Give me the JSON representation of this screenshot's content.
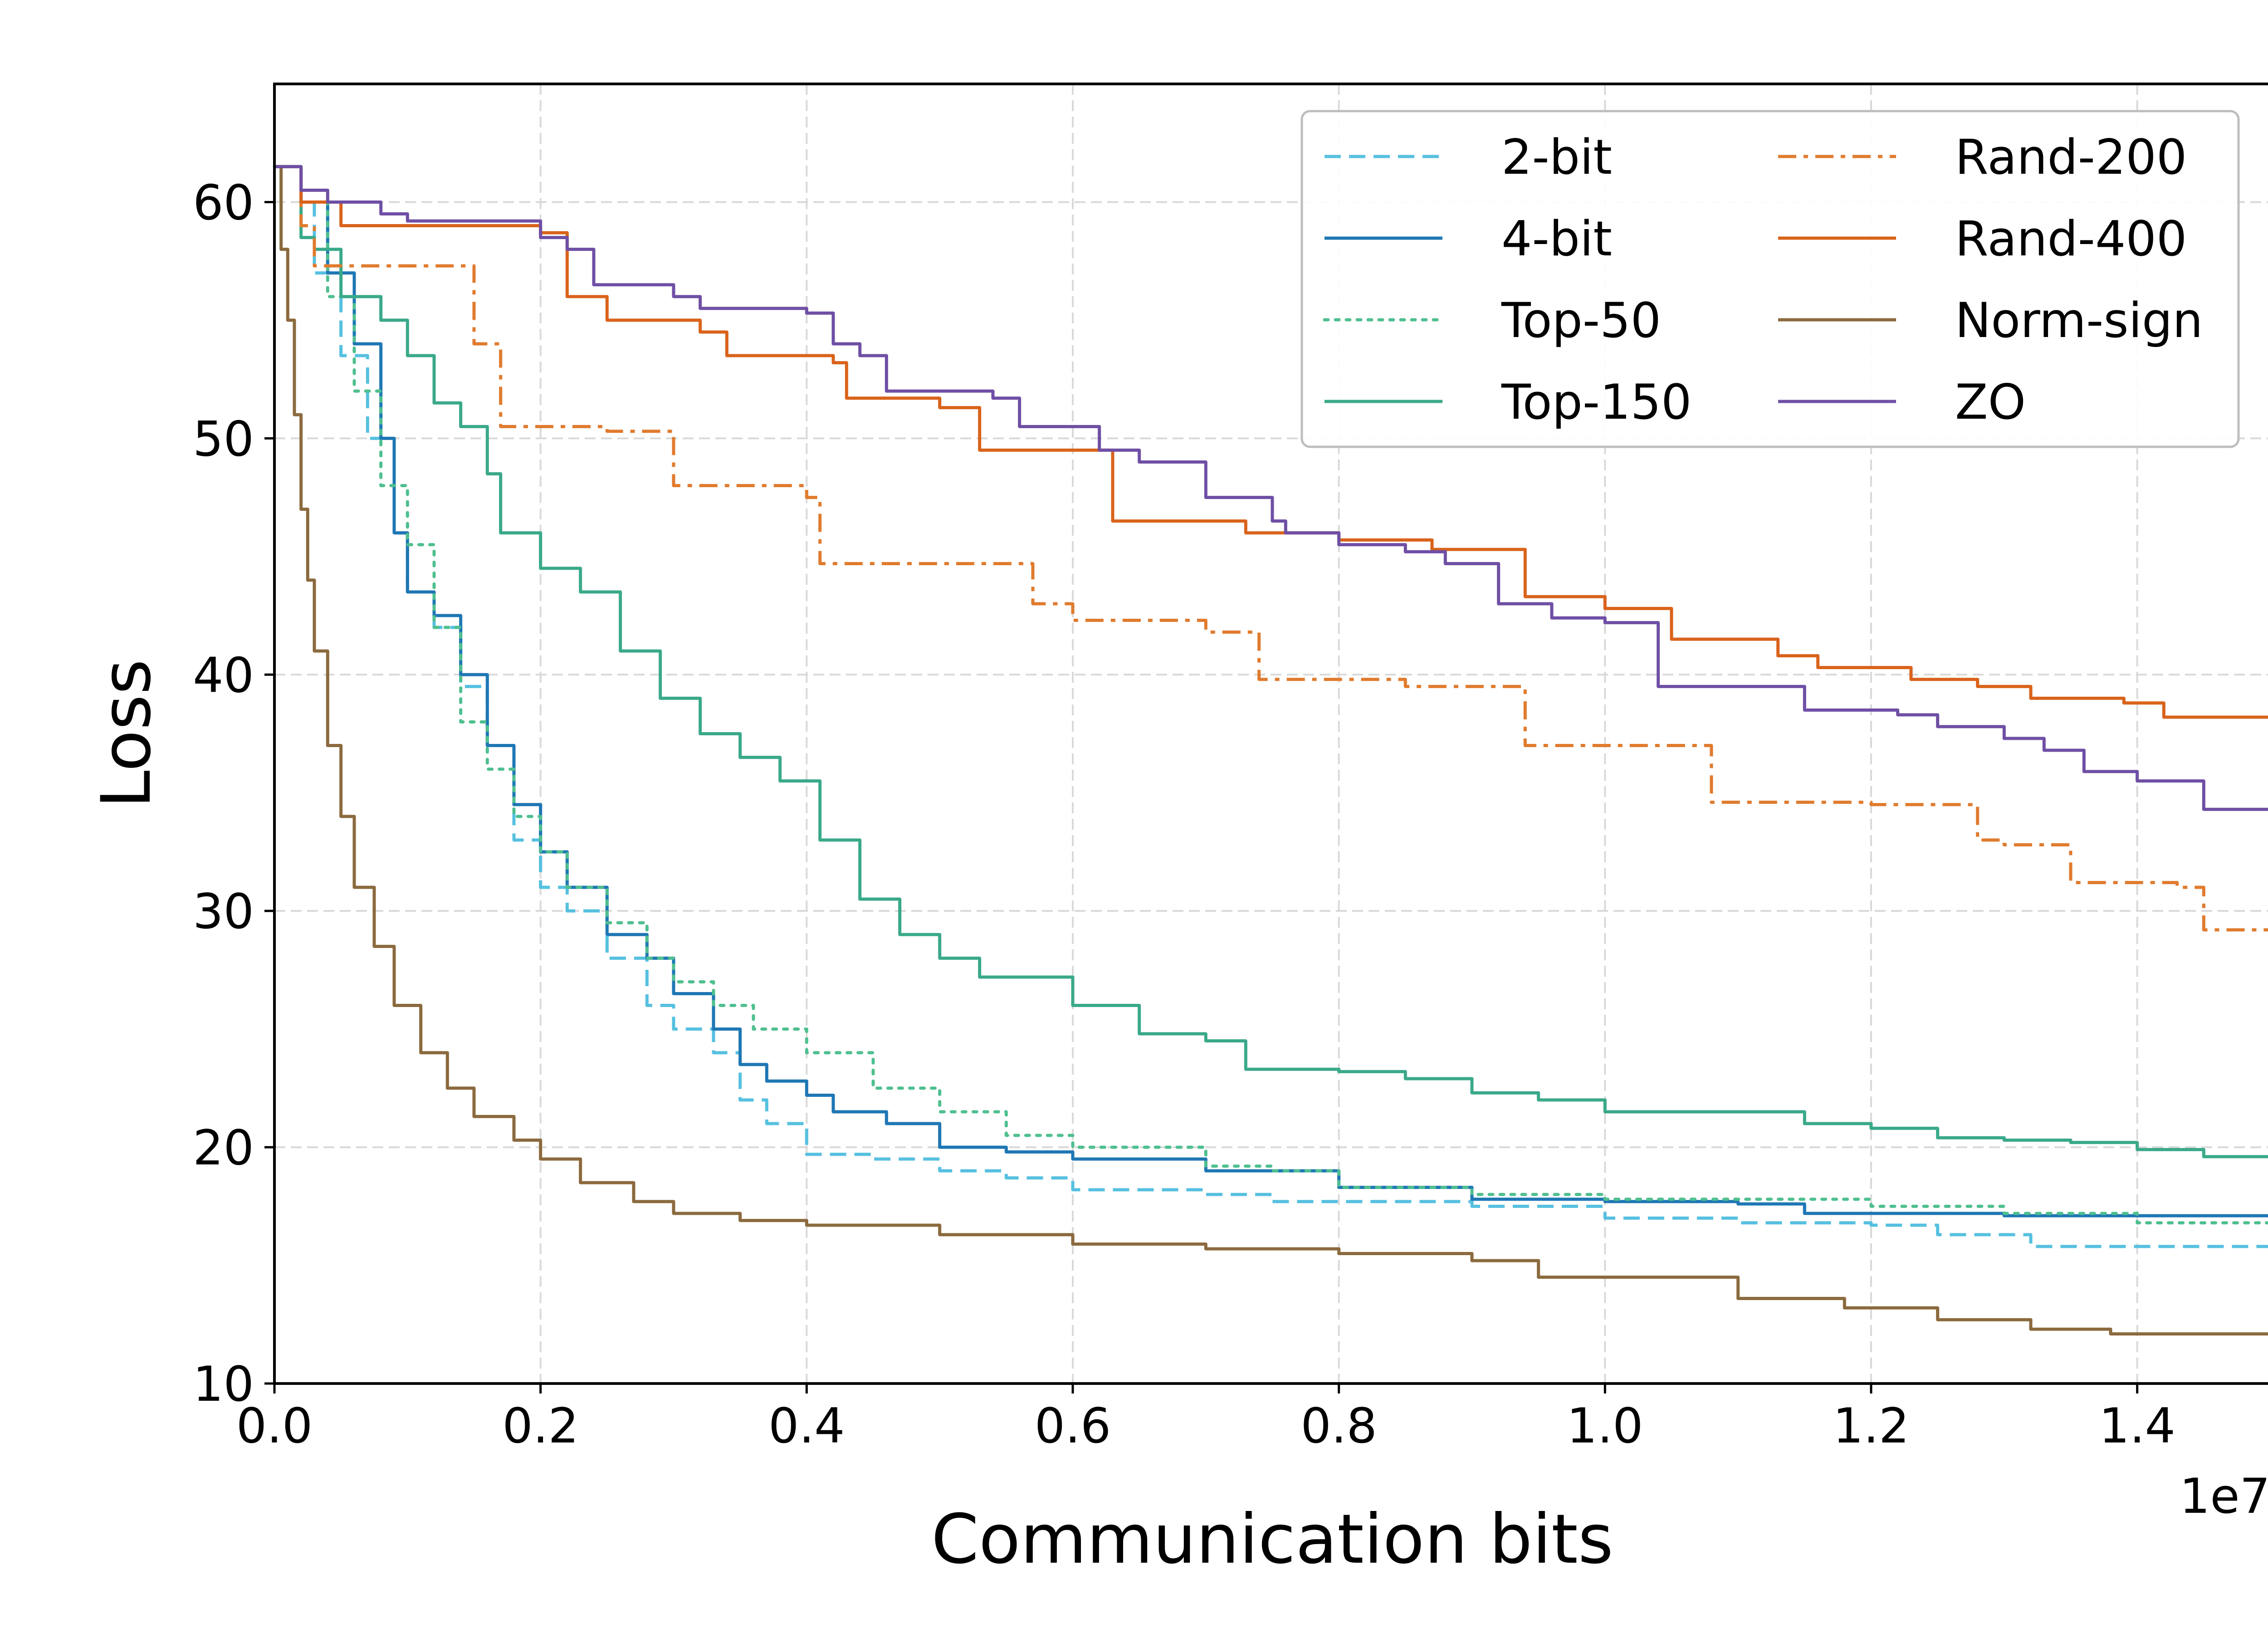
{
  "chart_data": {
    "type": "line",
    "xlabel": "Communication bits",
    "ylabel": "Loss",
    "x_offset_label": "1e7",
    "xlim": [
      0,
      1.5
    ],
    "ylim": [
      10,
      65
    ],
    "xticks": [
      0.0,
      0.2,
      0.4,
      0.6,
      0.8,
      1.0,
      1.2,
      1.4
    ],
    "xtick_labels": [
      "0.0",
      "0.2",
      "0.4",
      "0.6",
      "0.8",
      "1.0",
      "1.2",
      "1.4"
    ],
    "yticks": [
      10,
      20,
      30,
      40,
      50,
      60
    ],
    "ytick_labels": [
      "10",
      "20",
      "30",
      "40",
      "50",
      "60"
    ],
    "grid": true,
    "legend_position": "top-right",
    "series": [
      {
        "name": "2-bit",
        "color": "#56c0e0",
        "dash": "dashed",
        "points": [
          [
            0,
            61.5
          ],
          [
            0.02,
            60
          ],
          [
            0.03,
            57
          ],
          [
            0.05,
            53.5
          ],
          [
            0.07,
            50
          ],
          [
            0.09,
            46
          ],
          [
            0.1,
            43.5
          ],
          [
            0.12,
            42
          ],
          [
            0.14,
            39.5
          ],
          [
            0.16,
            37
          ],
          [
            0.18,
            33
          ],
          [
            0.2,
            31
          ],
          [
            0.22,
            30
          ],
          [
            0.25,
            28
          ],
          [
            0.28,
            26
          ],
          [
            0.3,
            25
          ],
          [
            0.33,
            24
          ],
          [
            0.35,
            22
          ],
          [
            0.37,
            21
          ],
          [
            0.4,
            19.7
          ],
          [
            0.45,
            19.5
          ],
          [
            0.5,
            19
          ],
          [
            0.55,
            18.7
          ],
          [
            0.6,
            18.2
          ],
          [
            0.7,
            18
          ],
          [
            0.75,
            17.7
          ],
          [
            0.9,
            17.5
          ],
          [
            1.0,
            17
          ],
          [
            1.1,
            16.8
          ],
          [
            1.2,
            16.7
          ],
          [
            1.25,
            16.3
          ],
          [
            1.32,
            15.8
          ],
          [
            1.5,
            15.8
          ]
        ]
      },
      {
        "name": "4-bit",
        "color": "#1f77b4",
        "dash": "solid",
        "points": [
          [
            0,
            61.5
          ],
          [
            0.02,
            60
          ],
          [
            0.04,
            57
          ],
          [
            0.06,
            54
          ],
          [
            0.08,
            50
          ],
          [
            0.09,
            46
          ],
          [
            0.1,
            43.5
          ],
          [
            0.12,
            42.5
          ],
          [
            0.14,
            40
          ],
          [
            0.16,
            37
          ],
          [
            0.18,
            34.5
          ],
          [
            0.2,
            32.5
          ],
          [
            0.22,
            31
          ],
          [
            0.25,
            29
          ],
          [
            0.28,
            28
          ],
          [
            0.3,
            26.5
          ],
          [
            0.33,
            25
          ],
          [
            0.35,
            23.5
          ],
          [
            0.37,
            22.8
          ],
          [
            0.4,
            22.2
          ],
          [
            0.42,
            21.5
          ],
          [
            0.46,
            21
          ],
          [
            0.5,
            20
          ],
          [
            0.55,
            19.8
          ],
          [
            0.6,
            19.5
          ],
          [
            0.7,
            19
          ],
          [
            0.8,
            18.3
          ],
          [
            0.9,
            17.8
          ],
          [
            1.0,
            17.7
          ],
          [
            1.1,
            17.6
          ],
          [
            1.15,
            17.2
          ],
          [
            1.3,
            17.1
          ],
          [
            1.5,
            17.1
          ]
        ]
      },
      {
        "name": "Top-50",
        "color": "#4fbf8f",
        "dash": "dotted",
        "points": [
          [
            0,
            61.5
          ],
          [
            0.02,
            60
          ],
          [
            0.04,
            56
          ],
          [
            0.06,
            52
          ],
          [
            0.08,
            48
          ],
          [
            0.1,
            45.5
          ],
          [
            0.12,
            42
          ],
          [
            0.14,
            38
          ],
          [
            0.16,
            36
          ],
          [
            0.18,
            34
          ],
          [
            0.2,
            32.5
          ],
          [
            0.22,
            31
          ],
          [
            0.25,
            29.5
          ],
          [
            0.28,
            28
          ],
          [
            0.3,
            27
          ],
          [
            0.33,
            26
          ],
          [
            0.36,
            25
          ],
          [
            0.4,
            24
          ],
          [
            0.45,
            22.5
          ],
          [
            0.5,
            21.5
          ],
          [
            0.55,
            20.5
          ],
          [
            0.6,
            20
          ],
          [
            0.7,
            19.2
          ],
          [
            0.75,
            19
          ],
          [
            0.8,
            18.3
          ],
          [
            0.9,
            18
          ],
          [
            1.0,
            17.8
          ],
          [
            1.1,
            17.8
          ],
          [
            1.2,
            17.5
          ],
          [
            1.3,
            17.2
          ],
          [
            1.4,
            16.8
          ],
          [
            1.5,
            16.8
          ]
        ]
      },
      {
        "name": "Top-150",
        "color": "#3aa98a",
        "dash": "solid",
        "points": [
          [
            0,
            61.5
          ],
          [
            0.02,
            58.5
          ],
          [
            0.03,
            58
          ],
          [
            0.05,
            56
          ],
          [
            0.08,
            55
          ],
          [
            0.1,
            53.5
          ],
          [
            0.12,
            51.5
          ],
          [
            0.14,
            50.5
          ],
          [
            0.16,
            48.5
          ],
          [
            0.17,
            46
          ],
          [
            0.2,
            44.5
          ],
          [
            0.23,
            43.5
          ],
          [
            0.26,
            41
          ],
          [
            0.29,
            39
          ],
          [
            0.32,
            37.5
          ],
          [
            0.35,
            36.5
          ],
          [
            0.38,
            35.5
          ],
          [
            0.41,
            33
          ],
          [
            0.44,
            30.5
          ],
          [
            0.47,
            29
          ],
          [
            0.5,
            28
          ],
          [
            0.53,
            27.2
          ],
          [
            0.6,
            26
          ],
          [
            0.65,
            24.8
          ],
          [
            0.7,
            24.5
          ],
          [
            0.73,
            23.3
          ],
          [
            0.8,
            23.2
          ],
          [
            0.85,
            22.9
          ],
          [
            0.9,
            22.3
          ],
          [
            0.95,
            22
          ],
          [
            1.0,
            21.5
          ],
          [
            1.1,
            21.5
          ],
          [
            1.15,
            21
          ],
          [
            1.2,
            20.8
          ],
          [
            1.25,
            20.4
          ],
          [
            1.3,
            20.3
          ],
          [
            1.35,
            20.2
          ],
          [
            1.4,
            19.9
          ],
          [
            1.45,
            19.6
          ],
          [
            1.5,
            19.6
          ]
        ]
      },
      {
        "name": "Rand-200",
        "color": "#e07b2e",
        "dash": "dashdot",
        "points": [
          [
            0,
            61.5
          ],
          [
            0.02,
            59
          ],
          [
            0.03,
            57.3
          ],
          [
            0.13,
            57.3
          ],
          [
            0.15,
            54
          ],
          [
            0.17,
            50.5
          ],
          [
            0.25,
            50.3
          ],
          [
            0.3,
            48
          ],
          [
            0.4,
            47.5
          ],
          [
            0.41,
            44.7
          ],
          [
            0.55,
            44.7
          ],
          [
            0.57,
            43
          ],
          [
            0.6,
            42.3
          ],
          [
            0.7,
            41.8
          ],
          [
            0.74,
            39.8
          ],
          [
            0.85,
            39.5
          ],
          [
            0.94,
            37
          ],
          [
            1.05,
            37
          ],
          [
            1.08,
            34.6
          ],
          [
            1.2,
            34.5
          ],
          [
            1.28,
            33
          ],
          [
            1.3,
            32.8
          ],
          [
            1.35,
            31.2
          ],
          [
            1.43,
            31
          ],
          [
            1.45,
            29.2
          ],
          [
            1.5,
            29.2
          ]
        ]
      },
      {
        "name": "Rand-400",
        "color": "#d9631b",
        "dash": "solid",
        "points": [
          [
            0,
            61.5
          ],
          [
            0.02,
            60
          ],
          [
            0.05,
            59
          ],
          [
            0.2,
            58.7
          ],
          [
            0.22,
            56
          ],
          [
            0.25,
            55
          ],
          [
            0.32,
            54.5
          ],
          [
            0.34,
            53.5
          ],
          [
            0.42,
            53.2
          ],
          [
            0.43,
            51.7
          ],
          [
            0.5,
            51.3
          ],
          [
            0.53,
            49.5
          ],
          [
            0.6,
            49.5
          ],
          [
            0.63,
            46.5
          ],
          [
            0.73,
            46
          ],
          [
            0.8,
            45.7
          ],
          [
            0.87,
            45.3
          ],
          [
            0.94,
            43.3
          ],
          [
            1.0,
            42.8
          ],
          [
            1.05,
            41.5
          ],
          [
            1.13,
            40.8
          ],
          [
            1.16,
            40.3
          ],
          [
            1.23,
            39.8
          ],
          [
            1.28,
            39.5
          ],
          [
            1.32,
            39
          ],
          [
            1.39,
            38.8
          ],
          [
            1.42,
            38.2
          ],
          [
            1.5,
            38
          ]
        ]
      },
      {
        "name": "Norm-sign",
        "color": "#8b6a3e",
        "dash": "solid",
        "points": [
          [
            0,
            61.5
          ],
          [
            0.005,
            58
          ],
          [
            0.01,
            55
          ],
          [
            0.015,
            51
          ],
          [
            0.02,
            47
          ],
          [
            0.025,
            44
          ],
          [
            0.03,
            41
          ],
          [
            0.04,
            37
          ],
          [
            0.05,
            34
          ],
          [
            0.06,
            31
          ],
          [
            0.075,
            28.5
          ],
          [
            0.09,
            26
          ],
          [
            0.11,
            24
          ],
          [
            0.13,
            22.5
          ],
          [
            0.15,
            21.3
          ],
          [
            0.18,
            20.3
          ],
          [
            0.2,
            19.5
          ],
          [
            0.23,
            18.5
          ],
          [
            0.27,
            17.7
          ],
          [
            0.3,
            17.2
          ],
          [
            0.35,
            16.9
          ],
          [
            0.4,
            16.7
          ],
          [
            0.5,
            16.3
          ],
          [
            0.6,
            15.9
          ],
          [
            0.7,
            15.7
          ],
          [
            0.8,
            15.5
          ],
          [
            0.9,
            15.2
          ],
          [
            0.95,
            14.5
          ],
          [
            1.05,
            14.5
          ],
          [
            1.1,
            13.6
          ],
          [
            1.18,
            13.2
          ],
          [
            1.25,
            12.7
          ],
          [
            1.32,
            12.3
          ],
          [
            1.38,
            12.1
          ],
          [
            1.5,
            12.1
          ]
        ]
      },
      {
        "name": "ZO",
        "color": "#6f4fa5",
        "dash": "solid",
        "points": [
          [
            0,
            61.5
          ],
          [
            0.02,
            60.5
          ],
          [
            0.04,
            60
          ],
          [
            0.08,
            59.5
          ],
          [
            0.1,
            59.2
          ],
          [
            0.2,
            58.5
          ],
          [
            0.22,
            58
          ],
          [
            0.24,
            56.5
          ],
          [
            0.28,
            56.5
          ],
          [
            0.3,
            56
          ],
          [
            0.32,
            55.5
          ],
          [
            0.4,
            55.3
          ],
          [
            0.42,
            54
          ],
          [
            0.44,
            53.5
          ],
          [
            0.46,
            52
          ],
          [
            0.54,
            51.7
          ],
          [
            0.56,
            50.5
          ],
          [
            0.62,
            49.5
          ],
          [
            0.65,
            49
          ],
          [
            0.7,
            47.5
          ],
          [
            0.75,
            46.5
          ],
          [
            0.76,
            46
          ],
          [
            0.8,
            45.5
          ],
          [
            0.85,
            45.2
          ],
          [
            0.88,
            44.7
          ],
          [
            0.92,
            43
          ],
          [
            0.96,
            42.4
          ],
          [
            1.0,
            42.2
          ],
          [
            1.04,
            39.5
          ],
          [
            1.12,
            39.5
          ],
          [
            1.15,
            38.5
          ],
          [
            1.22,
            38.3
          ],
          [
            1.25,
            37.8
          ],
          [
            1.3,
            37.3
          ],
          [
            1.33,
            36.8
          ],
          [
            1.36,
            35.9
          ],
          [
            1.4,
            35.5
          ],
          [
            1.45,
            34.3
          ],
          [
            1.5,
            34.3
          ]
        ]
      }
    ]
  }
}
